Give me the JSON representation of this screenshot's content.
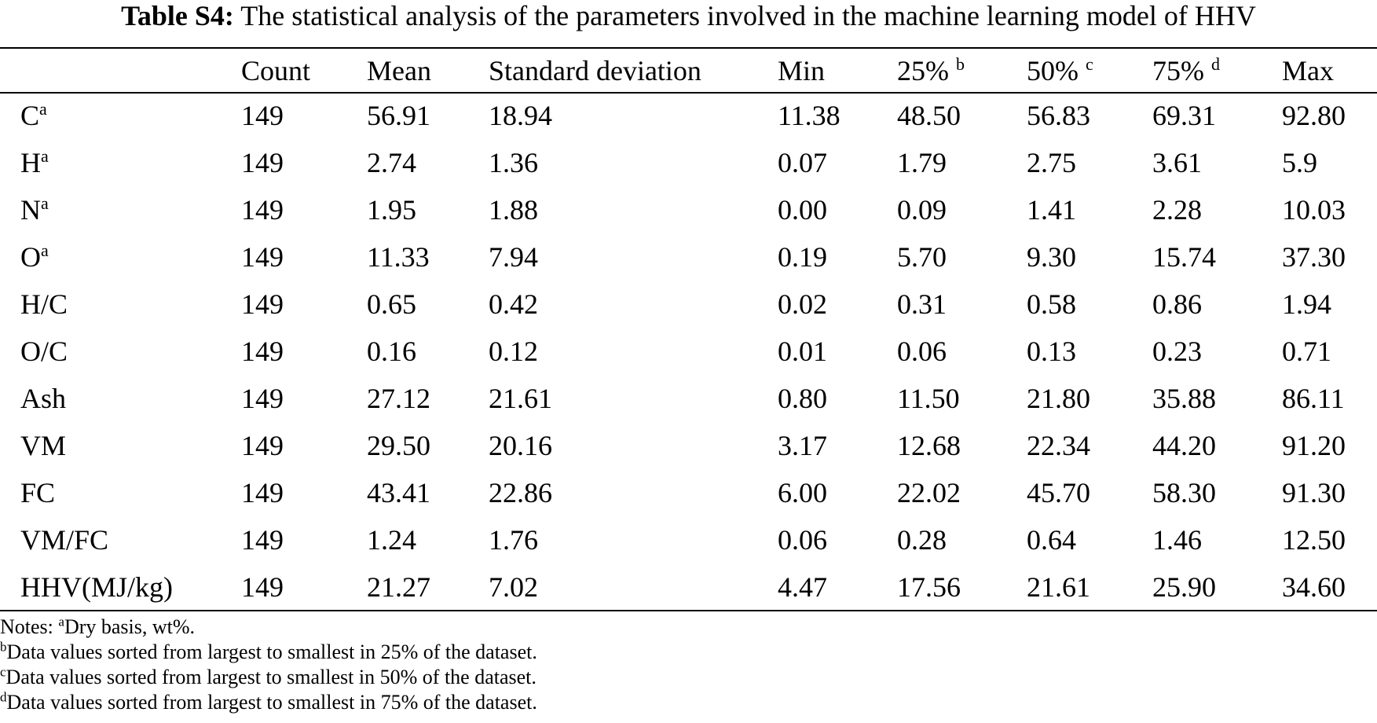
{
  "caption": {
    "label": "Table S4:",
    "text": "The statistical analysis of the parameters involved in the machine learning model of HHV"
  },
  "table": {
    "headers": [
      {
        "text": "",
        "sup": ""
      },
      {
        "text": "Count",
        "sup": ""
      },
      {
        "text": "Mean",
        "sup": ""
      },
      {
        "text": "Standard deviation",
        "sup": ""
      },
      {
        "text": "Min",
        "sup": ""
      },
      {
        "text": "25%",
        "sup": "b"
      },
      {
        "text": "50%",
        "sup": "c"
      },
      {
        "text": "75%",
        "sup": "d"
      },
      {
        "text": "Max",
        "sup": ""
      }
    ],
    "rows": [
      {
        "name": "C",
        "sup": "a",
        "values": [
          "149",
          "56.91",
          "18.94",
          "11.38",
          "48.50",
          "56.83",
          "69.31",
          "92.80"
        ]
      },
      {
        "name": "H",
        "sup": "a",
        "values": [
          "149",
          "2.74",
          "1.36",
          "0.07",
          "1.79",
          "2.75",
          "3.61",
          "5.9"
        ]
      },
      {
        "name": "N",
        "sup": "a",
        "values": [
          "149",
          "1.95",
          "1.88",
          "0.00",
          "0.09",
          "1.41",
          "2.28",
          "10.03"
        ]
      },
      {
        "name": "O",
        "sup": "a",
        "values": [
          "149",
          "11.33",
          "7.94",
          "0.19",
          "5.70",
          "9.30",
          "15.74",
          "37.30"
        ]
      },
      {
        "name": "H/C",
        "sup": "",
        "values": [
          "149",
          "0.65",
          "0.42",
          "0.02",
          "0.31",
          "0.58",
          "0.86",
          "1.94"
        ]
      },
      {
        "name": "O/C",
        "sup": "",
        "values": [
          "149",
          "0.16",
          "0.12",
          "0.01",
          "0.06",
          "0.13",
          "0.23",
          "0.71"
        ]
      },
      {
        "name": "Ash",
        "sup": "",
        "values": [
          "149",
          "27.12",
          "21.61",
          "0.80",
          "11.50",
          "21.80",
          "35.88",
          "86.11"
        ]
      },
      {
        "name": "VM",
        "sup": "",
        "values": [
          "149",
          "29.50",
          "20.16",
          "3.17",
          "12.68",
          "22.34",
          "44.20",
          "91.20"
        ]
      },
      {
        "name": "FC",
        "sup": "",
        "values": [
          "149",
          "43.41",
          "22.86",
          "6.00",
          "22.02",
          "45.70",
          "58.30",
          "91.30"
        ]
      },
      {
        "name": "VM/FC",
        "sup": "",
        "values": [
          "149",
          "1.24",
          "1.76",
          "0.06",
          "0.28",
          "0.64",
          "1.46",
          "12.50"
        ]
      },
      {
        "name": "HHV(MJ/kg)",
        "sup": "",
        "values": [
          "149",
          "21.27",
          "7.02",
          "4.47",
          "17.56",
          "21.61",
          "25.90",
          "34.60"
        ]
      }
    ]
  },
  "notes": [
    {
      "prefix": "Notes: ",
      "sup": "a",
      "text": "Dry basis, wt%."
    },
    {
      "prefix": "",
      "sup": "b",
      "text": "Data values sorted from largest to smallest in 25% of the dataset."
    },
    {
      "prefix": "",
      "sup": "c",
      "text": "Data values sorted from largest to smallest in 50% of the dataset."
    },
    {
      "prefix": "",
      "sup": "d",
      "text": "Data values sorted from largest to smallest in 75% of the dataset."
    }
  ]
}
